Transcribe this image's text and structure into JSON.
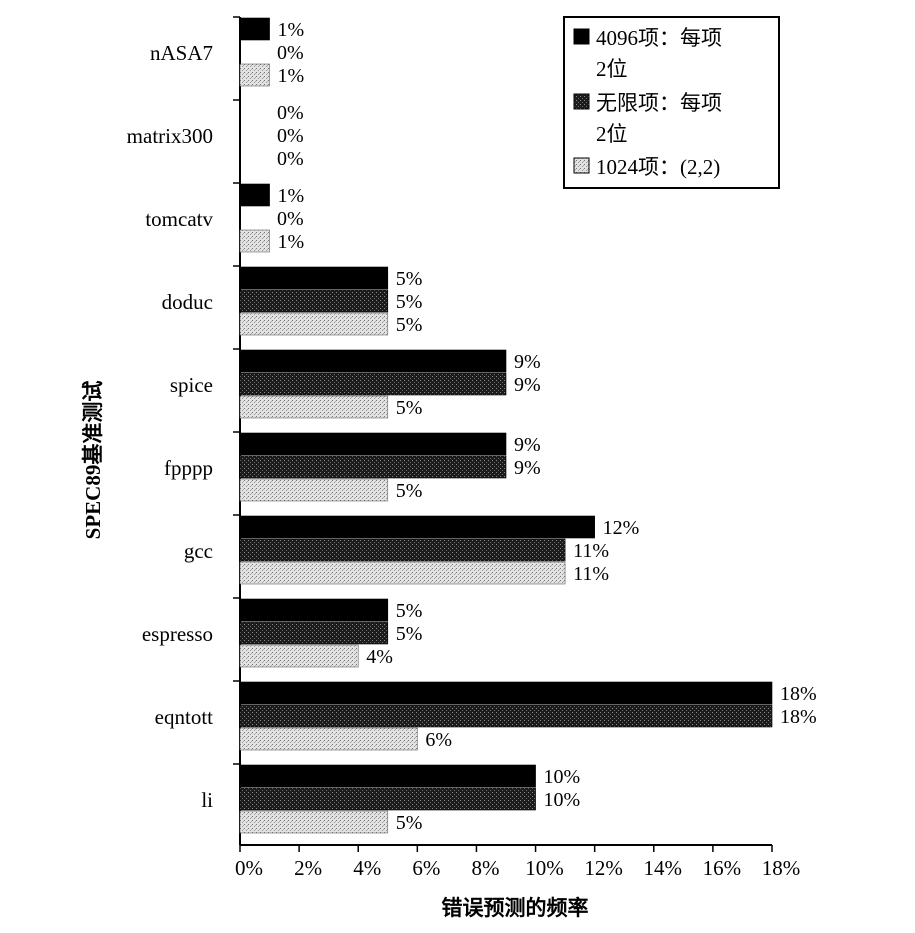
{
  "chart_data": {
    "type": "bar",
    "orientation": "horizontal",
    "categories": [
      "nASA7",
      "matrix300",
      "tomcatv",
      "doduc",
      "spice",
      "fpppp",
      "gcc",
      "espresso",
      "eqntott",
      "li"
    ],
    "series": [
      {
        "name": "4096项：每项2位",
        "legend_lines": [
          "4096项：每项",
          "2位"
        ],
        "values": [
          1,
          0,
          1,
          5,
          9,
          9,
          12,
          5,
          18,
          10
        ],
        "color": "#000000",
        "pattern": "solid"
      },
      {
        "name": "无限项：每项2位",
        "legend_lines": [
          "无限项：每项",
          "2位"
        ],
        "values": [
          0,
          0,
          0,
          5,
          9,
          9,
          11,
          5,
          18,
          10
        ],
        "color": "#2a2a2a",
        "pattern": "dark-stipple"
      },
      {
        "name": "1024项：(2,2)",
        "legend_lines": [
          "1024项：(2,2)"
        ],
        "values": [
          1,
          0,
          1,
          5,
          5,
          5,
          11,
          4,
          6,
          5
        ],
        "color": "#c8c8c8",
        "pattern": "light-stipple"
      }
    ],
    "data_labels": [
      [
        "1%",
        "0%",
        "1%"
      ],
      [
        "0%",
        "0%",
        "0%"
      ],
      [
        "1%",
        "0%",
        "1%"
      ],
      [
        "5%",
        "5%",
        "5%"
      ],
      [
        "9%",
        "9%",
        "5%"
      ],
      [
        "9%",
        "9%",
        "5%"
      ],
      [
        "12%",
        "11%",
        "11%"
      ],
      [
        "5%",
        "5%",
        "4%"
      ],
      [
        "18%",
        "18%",
        "6%"
      ],
      [
        "10%",
        "10%",
        "5%"
      ]
    ],
    "xlabel": "错误预测的频率",
    "ylabel": "SPEC89基准测试",
    "xlim": [
      0,
      18
    ],
    "xticks": [
      0,
      2,
      4,
      6,
      8,
      10,
      12,
      14,
      16,
      18
    ],
    "xtick_labels": [
      "0%",
      "2%",
      "4%",
      "6%",
      "8%",
      "10%",
      "12%",
      "14%",
      "16%",
      "18%"
    ],
    "grid": false,
    "legend_position": "top-right"
  }
}
